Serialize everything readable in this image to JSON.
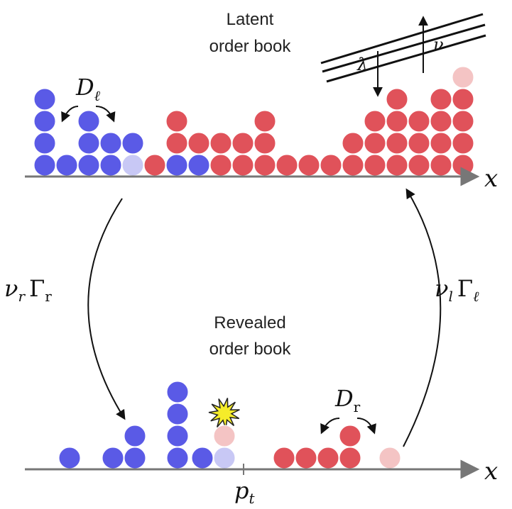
{
  "latent": {
    "title_line1": "Latent",
    "title_line2": "order book",
    "axis_label": "x",
    "diffusion_D": "D",
    "diffusion_D_sub": "ℓ",
    "lambda": "λ",
    "nu": "ν"
  },
  "revealed": {
    "title_line1": "Revealed",
    "title_line2": "order book",
    "axis_label": "x",
    "diffusion_D": "D",
    "diffusion_D_sub": "r",
    "price_p": "p",
    "price_sub": "t"
  },
  "rates": {
    "left_nu": "ν",
    "left_nu_sub": "r",
    "left_gamma": "Γ",
    "left_gamma_sub": "r",
    "right_nu": "ν",
    "right_nu_sub": "l",
    "right_gamma": "Γ",
    "right_gamma_sub": "ℓ"
  },
  "colors": {
    "bid": "#5a5ae6",
    "ask": "#e0525a",
    "bid_faded": "#c8c8f5",
    "ask_faded": "#f4c4c4",
    "axis": "#777777",
    "flash": "#f5ec2a"
  },
  "stacks": {
    "latent": [
      {
        "side": "bid",
        "count": 4
      },
      {
        "side": "bid",
        "count": 1
      },
      {
        "side": "bid",
        "count": 3
      },
      {
        "side": "bid",
        "count": 2
      },
      {
        "side": "bid",
        "count": 2,
        "faded_bottom": true
      },
      {
        "side": "ask",
        "count": 1
      },
      {
        "side": "mixed",
        "bid": 1,
        "ask": 2
      },
      {
        "side": "mixed",
        "bid": 1,
        "ask": 1
      },
      {
        "side": "ask",
        "count": 2
      },
      {
        "side": "ask",
        "count": 2
      },
      {
        "side": "ask",
        "count": 3
      },
      {
        "side": "ask",
        "count": 1
      },
      {
        "side": "ask",
        "count": 1
      },
      {
        "side": "ask",
        "count": 1
      },
      {
        "side": "ask",
        "count": 2
      },
      {
        "side": "ask",
        "count": 3
      },
      {
        "side": "ask",
        "count": 4
      },
      {
        "side": "ask",
        "count": 3
      },
      {
        "side": "ask",
        "count": 4
      },
      {
        "side": "ask",
        "count": 4,
        "faded_top": true
      }
    ],
    "revealed": [
      {
        "side": "bid",
        "count": 1
      },
      {
        "side": "bid",
        "count": 1
      },
      {
        "side": "bid",
        "count": 2
      },
      {
        "side": "bid",
        "count": 4
      },
      {
        "side": "bid",
        "count": 1
      },
      {
        "side": "mixed_faded",
        "bid": 1,
        "ask": 1
      },
      {
        "side": "ask",
        "count": 1
      },
      {
        "side": "ask",
        "count": 1
      },
      {
        "side": "ask",
        "count": 1
      },
      {
        "side": "ask",
        "count": 2
      },
      {
        "side": "ask_faded",
        "count": 1
      }
    ]
  }
}
